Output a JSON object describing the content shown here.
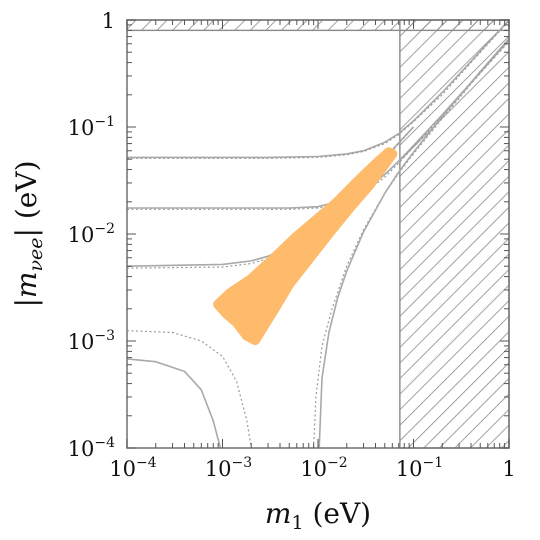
{
  "chart_data": {
    "type": "scatter",
    "x_scale": "log",
    "y_scale": "log",
    "xlim": [
      0.0001,
      1
    ],
    "ylim": [
      0.0001,
      1
    ],
    "xlabel_main": "m",
    "xlabel_sub": "1",
    "xlabel_unit": " (eV)",
    "ylabel_main": "|m",
    "ylabel_sub": "νee",
    "ylabel_tail": "|",
    "ylabel_unit": " (eV)",
    "x_ticks": [
      {
        "value": 0.0001,
        "base": "10",
        "exp": "−4"
      },
      {
        "value": 0.001,
        "base": "10",
        "exp": "−3"
      },
      {
        "value": 0.01,
        "base": "10",
        "exp": "−2"
      },
      {
        "value": 0.1,
        "base": "10",
        "exp": "−1"
      },
      {
        "value": 1,
        "base": "1",
        "exp": ""
      }
    ],
    "y_ticks": [
      {
        "value": 0.0001,
        "base": "10",
        "exp": "−4"
      },
      {
        "value": 0.001,
        "base": "10",
        "exp": "−3"
      },
      {
        "value": 0.01,
        "base": "10",
        "exp": "−2"
      },
      {
        "value": 0.1,
        "base": "10",
        "exp": "−1"
      },
      {
        "value": 1,
        "base": "1",
        "exp": ""
      }
    ],
    "excluded_regions": [
      {
        "name": "mass-bound",
        "x_min": 0.072,
        "x_max": 1,
        "y_min": 0.0001,
        "y_max": 1
      },
      {
        "name": "mee-bound",
        "x_min": 0.0001,
        "x_max": 1,
        "y_min": 0.8,
        "y_max": 1
      }
    ],
    "series": [
      {
        "style": "solid",
        "points": [
          [
            0.0001,
            0.052
          ],
          [
            0.003,
            0.052
          ],
          [
            0.01,
            0.053
          ],
          [
            0.02,
            0.056
          ],
          [
            0.03,
            0.06
          ],
          [
            0.05,
            0.072
          ],
          [
            0.07,
            0.087
          ],
          [
            0.1,
            0.114
          ],
          [
            0.2,
            0.21
          ],
          [
            0.4,
            0.41
          ],
          [
            1,
            1
          ]
        ]
      },
      {
        "style": "dotted",
        "points": [
          [
            0.0001,
            0.051
          ],
          [
            0.003,
            0.051
          ],
          [
            0.01,
            0.052
          ],
          [
            0.02,
            0.055
          ],
          [
            0.03,
            0.059
          ],
          [
            0.05,
            0.07
          ],
          [
            0.07,
            0.085
          ],
          [
            0.1,
            0.112
          ],
          [
            0.2,
            0.2
          ],
          [
            0.4,
            0.4
          ],
          [
            1,
            0.98
          ]
        ]
      },
      {
        "style": "solid",
        "points": [
          [
            0.0001,
            0.0175
          ],
          [
            0.005,
            0.0175
          ],
          [
            0.01,
            0.018
          ],
          [
            0.02,
            0.021
          ],
          [
            0.03,
            0.025
          ],
          [
            0.05,
            0.036
          ],
          [
            0.07,
            0.048
          ],
          [
            0.1,
            0.067
          ],
          [
            0.2,
            0.13
          ],
          [
            0.4,
            0.26
          ],
          [
            1,
            0.65
          ]
        ]
      },
      {
        "style": "dotted",
        "points": [
          [
            0.0001,
            0.017
          ],
          [
            0.005,
            0.017
          ],
          [
            0.01,
            0.0175
          ],
          [
            0.02,
            0.02
          ],
          [
            0.03,
            0.024
          ],
          [
            0.05,
            0.034
          ],
          [
            0.07,
            0.046
          ],
          [
            0.1,
            0.065
          ],
          [
            0.2,
            0.127
          ],
          [
            0.4,
            0.255
          ],
          [
            1,
            0.63
          ]
        ]
      },
      {
        "style": "solid",
        "points": [
          [
            0.0001,
            0.005
          ],
          [
            0.001,
            0.0052
          ],
          [
            0.002,
            0.0056
          ],
          [
            0.003,
            0.0062
          ],
          [
            0.005,
            0.0077
          ],
          [
            0.007,
            0.0093
          ],
          [
            0.01,
            0.012
          ],
          [
            0.02,
            0.0215
          ],
          [
            0.04,
            0.041
          ],
          [
            0.07,
            0.071
          ],
          [
            0.1,
            0.1
          ]
        ]
      },
      {
        "style": "dotted",
        "points": [
          [
            0.0001,
            0.0048
          ],
          [
            0.001,
            0.0049
          ],
          [
            0.002,
            0.0053
          ],
          [
            0.003,
            0.0059
          ],
          [
            0.005,
            0.0073
          ],
          [
            0.007,
            0.0089
          ],
          [
            0.01,
            0.0115
          ],
          [
            0.02,
            0.021
          ],
          [
            0.04,
            0.04
          ],
          [
            0.07,
            0.07
          ],
          [
            0.1,
            0.1
          ]
        ]
      },
      {
        "style": "solid",
        "points": [
          [
            0.0001,
            0.00068
          ],
          [
            0.0002,
            0.00064
          ],
          [
            0.0004,
            0.00052
          ],
          [
            0.0006,
            0.00035
          ],
          [
            0.0008,
            0.00018
          ],
          [
            0.00095,
            0.0001
          ]
        ]
      },
      {
        "style": "dotted",
        "points": [
          [
            0.0001,
            0.00125
          ],
          [
            0.0003,
            0.0012
          ],
          [
            0.0006,
            0.001
          ],
          [
            0.001,
            0.00072
          ],
          [
            0.0014,
            0.00042
          ],
          [
            0.0018,
            0.00018
          ],
          [
            0.002,
            0.0001
          ]
        ]
      },
      {
        "style": "dotted",
        "points": [
          [
            0.009,
            0.0001
          ],
          [
            0.0095,
            0.0003
          ],
          [
            0.011,
            0.0009
          ],
          [
            0.014,
            0.002
          ],
          [
            0.02,
            0.005
          ],
          [
            0.03,
            0.011
          ],
          [
            0.05,
            0.024
          ],
          [
            0.07,
            0.037
          ],
          [
            0.1,
            0.056
          ],
          [
            0.2,
            0.12
          ],
          [
            0.5,
            0.32
          ],
          [
            1,
            0.65
          ]
        ]
      },
      {
        "style": "solid",
        "points": [
          [
            0.0103,
            0.0001
          ],
          [
            0.011,
            0.00045
          ],
          [
            0.013,
            0.0012
          ],
          [
            0.016,
            0.0025
          ],
          [
            0.02,
            0.0045
          ],
          [
            0.03,
            0.0105
          ],
          [
            0.05,
            0.024
          ],
          [
            0.07,
            0.038
          ],
          [
            0.1,
            0.058
          ],
          [
            0.2,
            0.125
          ],
          [
            0.5,
            0.33
          ],
          [
            1,
            0.67
          ]
        ]
      }
    ],
    "scatter_region": {
      "color": "#fdbb6b",
      "points": [
        [
          0.0009,
          0.0022
        ],
        [
          0.0012,
          0.0028
        ],
        [
          0.002,
          0.0038
        ],
        [
          0.0035,
          0.006
        ],
        [
          0.006,
          0.0095
        ],
        [
          0.01,
          0.014
        ],
        [
          0.016,
          0.02
        ],
        [
          0.025,
          0.03
        ],
        [
          0.04,
          0.045
        ],
        [
          0.055,
          0.058
        ],
        [
          0.06,
          0.056
        ],
        [
          0.05,
          0.045
        ],
        [
          0.035,
          0.029
        ],
        [
          0.022,
          0.018
        ],
        [
          0.014,
          0.011
        ],
        [
          0.008,
          0.0058
        ],
        [
          0.005,
          0.0034
        ],
        [
          0.0035,
          0.002
        ],
        [
          0.0028,
          0.00145
        ],
        [
          0.0022,
          0.00102
        ],
        [
          0.0018,
          0.00112
        ],
        [
          0.0014,
          0.0015
        ],
        [
          0.0011,
          0.0018
        ]
      ]
    }
  }
}
